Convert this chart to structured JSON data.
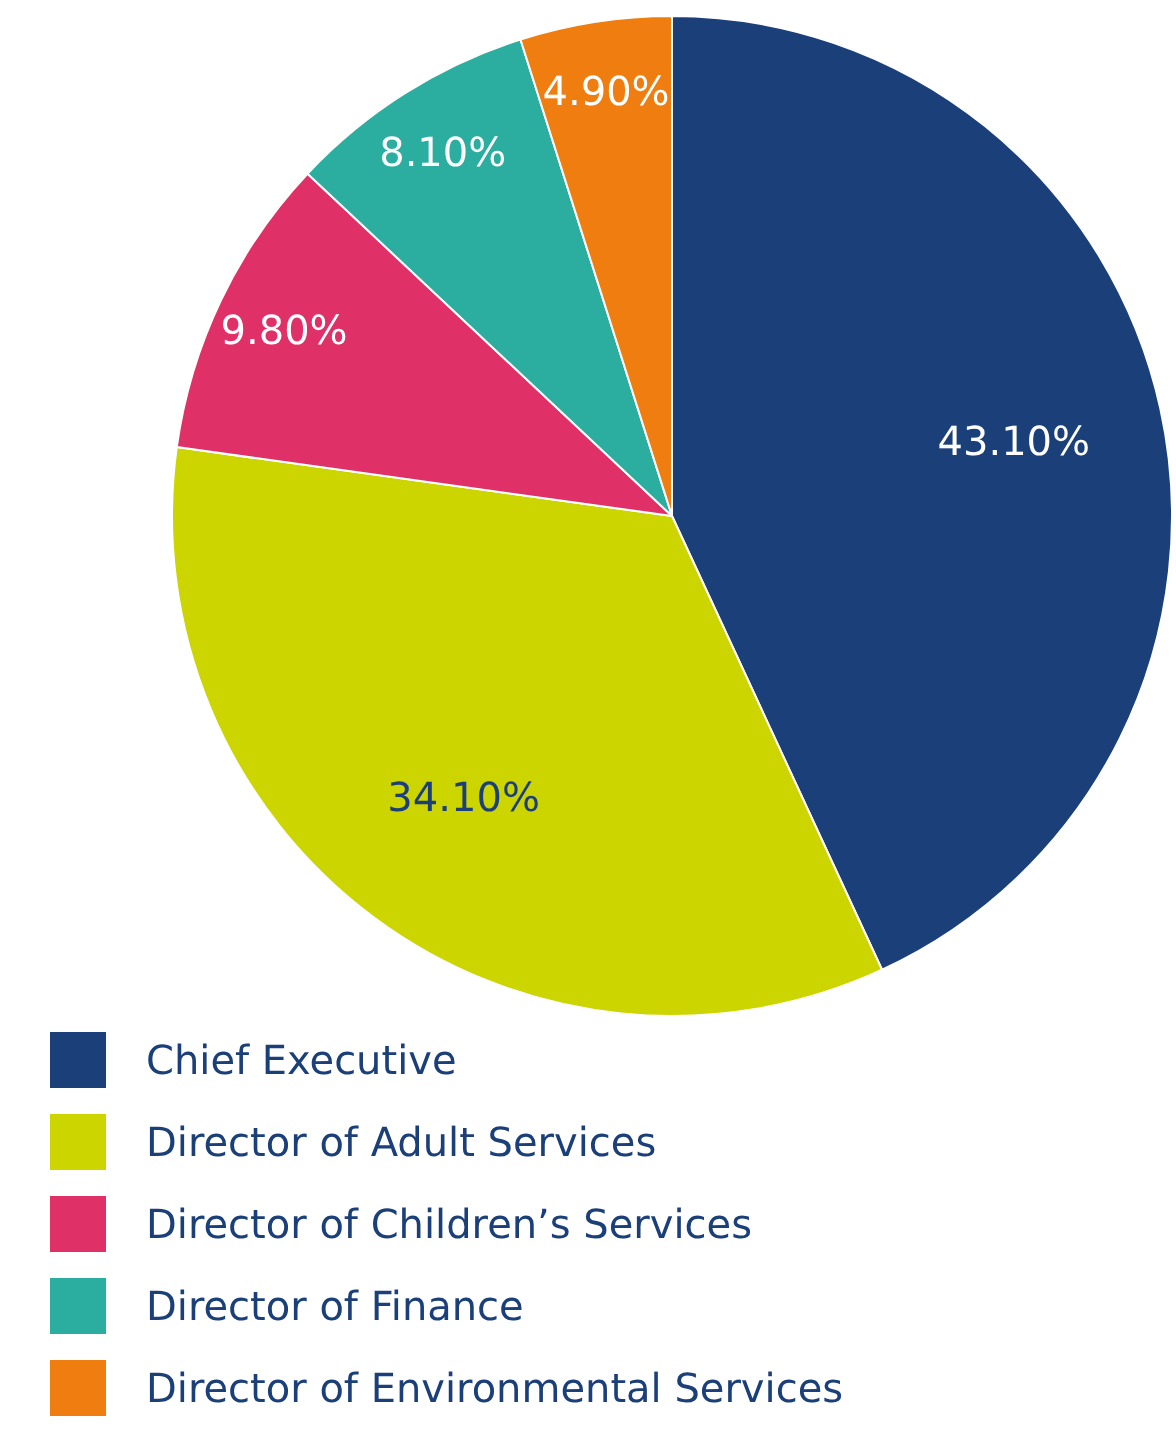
{
  "chart_data": {
    "type": "pie",
    "categories": [
      "Chief Executive",
      "Director of Adult Services",
      "Director of Children’s Services",
      "Director of Finance",
      "Director of Environmental Services"
    ],
    "values": [
      43.1,
      34.1,
      9.8,
      8.1,
      4.9
    ],
    "value_labels": [
      "43.10%",
      "34.10%",
      "9.80%",
      "8.10%",
      "4.90%"
    ],
    "colors": [
      "#1b3f78",
      "#cdd500",
      "#e03068",
      "#2bada0",
      "#f07d0f"
    ],
    "legend": "bottom left"
  }
}
